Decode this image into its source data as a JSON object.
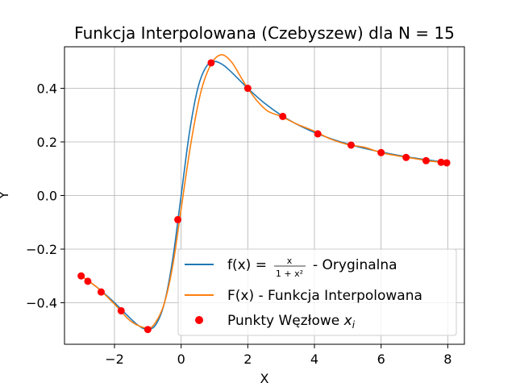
{
  "chart_data": {
    "type": "line",
    "title": "Funkcja Interpolowana (Czebyszew) dla N = 15",
    "xlabel": "X",
    "ylabel": "Y",
    "xlim": [
      -3.5,
      8.5
    ],
    "ylim": [
      -0.555,
      0.555
    ],
    "x_ticks": [
      -2,
      0,
      2,
      4,
      6,
      8
    ],
    "x_tick_labels": [
      "−2",
      "0",
      "2",
      "4",
      "6",
      "8"
    ],
    "y_ticks": [
      -0.4,
      -0.2,
      0.0,
      0.2,
      0.4
    ],
    "y_tick_labels": [
      "−0.4",
      "−0.2",
      "0.0",
      "0.2",
      "0.4"
    ],
    "grid": true,
    "legend_position": "lower-right",
    "series": [
      {
        "name": "f(x) = x/(1+x²) - Oryginalna",
        "legend_prefix": "f(x) =",
        "legend_num": "x",
        "legend_den": "1 + x²",
        "legend_suffix": "- Oryginalna",
        "color": "#1f77b4",
        "kind": "line",
        "x": [
          -3.0,
          -2.5,
          -2.0,
          -1.5,
          -1.25,
          -1.0,
          -0.75,
          -0.5,
          -0.25,
          0.0,
          0.25,
          0.5,
          0.75,
          1.0,
          1.25,
          1.5,
          2.0,
          2.5,
          3.0,
          3.5,
          4.0,
          4.5,
          5.0,
          5.5,
          6.0,
          6.5,
          7.0,
          7.5,
          8.0
        ],
        "y": [
          -0.3,
          -0.3448,
          -0.4,
          -0.4615,
          -0.4878,
          -0.5,
          -0.48,
          -0.4,
          -0.2353,
          0.0,
          0.2353,
          0.4,
          0.48,
          0.5,
          0.4878,
          0.4615,
          0.4,
          0.3448,
          0.3,
          0.2642,
          0.2353,
          0.2118,
          0.1923,
          0.176,
          0.1622,
          0.1503,
          0.14,
          0.131,
          0.1231
        ]
      },
      {
        "name": "F(x) - Funkcja Interpolowana",
        "color": "#ff7f0e",
        "kind": "line",
        "x": [
          -3.0,
          -2.5,
          -2.0,
          -1.5,
          -1.0,
          -0.75,
          -0.5,
          -0.25,
          0.0,
          0.3,
          0.6,
          0.9,
          1.2,
          1.5,
          1.8,
          2.0,
          2.3,
          2.6,
          3.0,
          3.5,
          4.0,
          4.5,
          5.0,
          5.5,
          6.0,
          6.5,
          7.0,
          7.5,
          8.0
        ],
        "y": [
          -0.3,
          -0.345,
          -0.405,
          -0.47,
          -0.495,
          -0.47,
          -0.4,
          -0.26,
          -0.05,
          0.2,
          0.39,
          0.49,
          0.525,
          0.5,
          0.44,
          0.4,
          0.35,
          0.315,
          0.295,
          0.265,
          0.24,
          0.21,
          0.19,
          0.18,
          0.16,
          0.148,
          0.138,
          0.128,
          0.123
        ]
      },
      {
        "name": "Punkty Węzłowe xᵢ",
        "legend_main": "Punkty Węzłowe",
        "legend_var": "x",
        "legend_sub": "i",
        "color": "#ff0000",
        "kind": "scatter",
        "x": [
          -3.0,
          -2.8,
          -2.4,
          -1.8,
          -1.0,
          -0.1,
          0.9,
          2.0,
          3.05,
          4.1,
          5.1,
          6.0,
          6.75,
          7.35,
          7.8,
          7.97
        ],
        "y": [
          -0.3,
          -0.32,
          -0.36,
          -0.43,
          -0.5,
          -0.09,
          0.495,
          0.4,
          0.295,
          0.23,
          0.188,
          0.16,
          0.142,
          0.13,
          0.124,
          0.122
        ]
      }
    ]
  }
}
